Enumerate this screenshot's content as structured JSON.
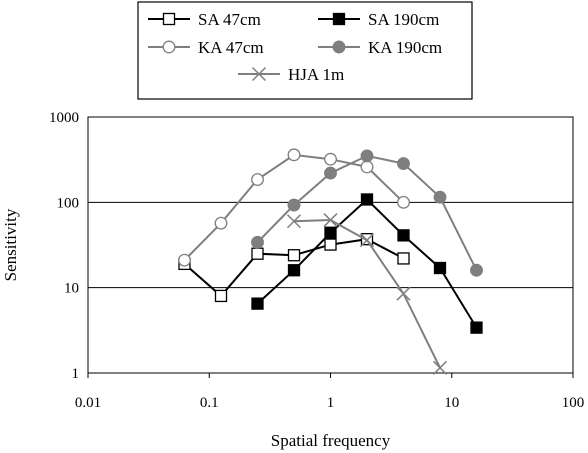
{
  "chart_data": {
    "type": "line",
    "xlabel": "Spatial frequency",
    "ylabel": "Sensitivity",
    "x_scale": "log",
    "y_scale": "log",
    "xlim": [
      0.01,
      100
    ],
    "ylim": [
      1,
      1000
    ],
    "x_ticks": [
      0.01,
      0.1,
      1,
      10,
      100
    ],
    "x_tick_labels": [
      "0.01",
      "0.1",
      "1",
      "10",
      "100"
    ],
    "y_ticks": [
      1,
      10,
      100,
      1000
    ],
    "y_tick_labels": [
      "1",
      "10",
      "100",
      "1000"
    ],
    "grid": "horizontal",
    "legend_position": "top",
    "series": [
      {
        "name": "SA 47cm",
        "color": "#000000",
        "marker": "open-square",
        "x": [
          0.0625,
          0.125,
          0.25,
          0.5,
          1,
          2,
          4
        ],
        "y": [
          19,
          8,
          25,
          24,
          32,
          37,
          22
        ]
      },
      {
        "name": "SA 190cm",
        "color": "#000000",
        "marker": "filled-square",
        "x": [
          0.25,
          0.5,
          1,
          2,
          4,
          8,
          16
        ],
        "y": [
          6.5,
          16,
          44,
          108,
          41,
          17,
          3.4
        ]
      },
      {
        "name": "KA 47cm",
        "color": "#7f7f7f",
        "marker": "open-circle",
        "x": [
          0.0625,
          0.125,
          0.25,
          0.5,
          1,
          2,
          4
        ],
        "y": [
          21,
          57,
          185,
          360,
          320,
          260,
          100
        ]
      },
      {
        "name": "KA 190cm",
        "color": "#7f7f7f",
        "marker": "filled-circle",
        "x": [
          0.25,
          0.5,
          1,
          2,
          4,
          8,
          16
        ],
        "y": [
          34,
          93,
          220,
          350,
          285,
          115,
          16
        ]
      },
      {
        "name": "HJA 1m",
        "color": "#7f7f7f",
        "marker": "x",
        "x": [
          0.5,
          1,
          2,
          4,
          8
        ],
        "y": [
          60,
          62,
          36,
          8.5,
          1.15
        ]
      }
    ]
  }
}
